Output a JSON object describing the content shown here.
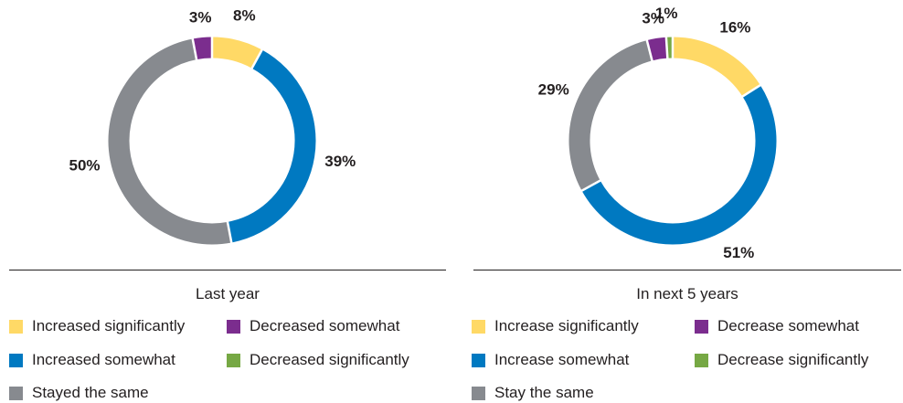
{
  "colors": {
    "yellow": "#FFD966",
    "blue": "#0079C1",
    "gray": "#878A8F",
    "purple": "#7B2D8E",
    "green": "#76A844"
  },
  "chart_data": [
    {
      "type": "pie",
      "variant": "donut",
      "title": "Last year",
      "slices": [
        {
          "label": "Increased significantly",
          "value": 8,
          "display": "8%",
          "color": "#FFD966"
        },
        {
          "label": "Increased somewhat",
          "value": 39,
          "display": "39%",
          "color": "#0079C1"
        },
        {
          "label": "Stayed the same",
          "value": 50,
          "display": "50%",
          "color": "#878A8F"
        },
        {
          "label": "Decreased somewhat",
          "value": 3,
          "display": "3%",
          "color": "#7B2D8E"
        }
      ],
      "legend": [
        {
          "label": "Increased significantly",
          "color": "#FFD966"
        },
        {
          "label": "Decreased somewhat",
          "color": "#7B2D8E"
        },
        {
          "label": "Increased somewhat",
          "color": "#0079C1"
        },
        {
          "label": "Decreased significantly",
          "color": "#76A844"
        },
        {
          "label": "Stayed the same",
          "color": "#878A8F"
        }
      ]
    },
    {
      "type": "pie",
      "variant": "donut",
      "title": "In next 5 years",
      "slices": [
        {
          "label": "Increase significantly",
          "value": 16,
          "display": "16%",
          "color": "#FFD966"
        },
        {
          "label": "Increase somewhat",
          "value": 51,
          "display": "51%",
          "color": "#0079C1"
        },
        {
          "label": "Stay the same",
          "value": 29,
          "display": "29%",
          "color": "#878A8F"
        },
        {
          "label": "Decrease somewhat",
          "value": 3,
          "display": "3%",
          "color": "#7B2D8E"
        },
        {
          "label": "Decrease significantly",
          "value": 1,
          "display": "1%",
          "color": "#76A844"
        }
      ],
      "legend": [
        {
          "label": "Increase significantly",
          "color": "#FFD966"
        },
        {
          "label": "Decrease somewhat",
          "color": "#7B2D8E"
        },
        {
          "label": "Increase somewhat",
          "color": "#0079C1"
        },
        {
          "label": "Decrease significantly",
          "color": "#76A844"
        },
        {
          "label": "Stay the same",
          "color": "#878A8F"
        }
      ]
    }
  ]
}
